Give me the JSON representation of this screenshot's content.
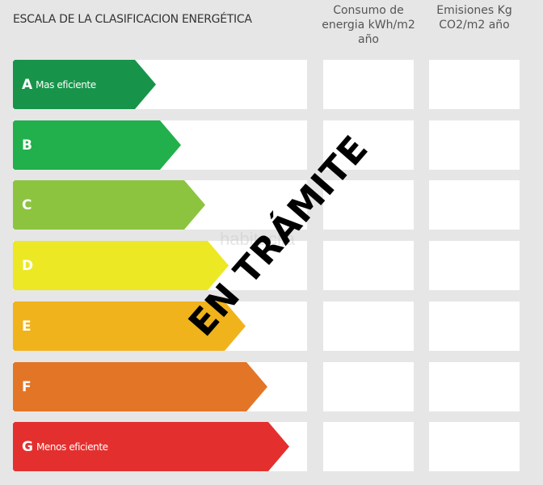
{
  "header": {
    "title": "ESCALA DE LA CLASIFICACION ENERGÉTICA",
    "col_energy": "Consumo de energia kWh/m2 año",
    "col_emissions": "Emisiones Kg CO2/m2 año"
  },
  "ratings": [
    {
      "letter": "A",
      "label": "Mas eficiente",
      "color": "#17944a"
    },
    {
      "letter": "B",
      "label": "",
      "color": "#21b04b"
    },
    {
      "letter": "C",
      "label": "",
      "color": "#8cc43f"
    },
    {
      "letter": "D",
      "label": "",
      "color": "#ece824"
    },
    {
      "letter": "E",
      "label": "",
      "color": "#f0b31c"
    },
    {
      "letter": "F",
      "label": "",
      "color": "#e37527"
    },
    {
      "letter": "G",
      "label": "Menos eficiente",
      "color": "#e3302e"
    }
  ],
  "stamp": "EN TRÁMITE",
  "watermark": "habitaclia"
}
